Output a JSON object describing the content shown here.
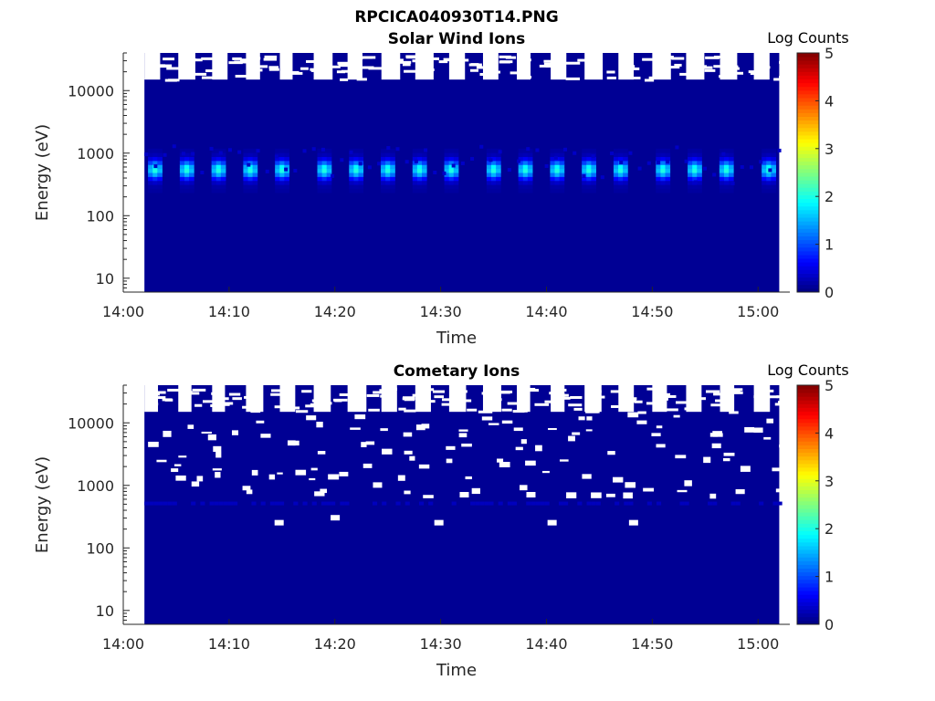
{
  "figure": {
    "title": "RPCICA040930T14.PNG"
  },
  "chart_data": [
    {
      "type": "heatmap",
      "title": "Solar Wind Ions",
      "xlabel": "Time",
      "ylabel": "Energy (eV)",
      "x_ticks": [
        "14:00",
        "14:10",
        "14:20",
        "14:30",
        "14:40",
        "14:50",
        "15:00"
      ],
      "x_range": [
        "14:00",
        "15:03"
      ],
      "data_time_range": [
        "14:02",
        "15:02"
      ],
      "y_scale": "log",
      "y_ticks": [
        "10",
        "100",
        "1000",
        "10000"
      ],
      "y_range": [
        6,
        40000
      ],
      "colorbar": {
        "label": "Log Counts",
        "ticks": [
          "0",
          "1",
          "2",
          "3",
          "4",
          "5"
        ],
        "range": [
          0,
          5
        ],
        "colormap": "jet"
      },
      "background_log_counts": 0.1,
      "peak_energy_eV": 550,
      "peak_log_counts": 1.9,
      "peak_band_eV": [
        250,
        1100
      ],
      "sweep_period_min": 3.2,
      "peak_times": [
        "14:03",
        "14:06",
        "14:09",
        "14:12",
        "14:15",
        "14:19",
        "14:22",
        "14:25",
        "14:28",
        "14:31",
        "14:35",
        "14:38",
        "14:41",
        "14:44",
        "14:47",
        "14:51",
        "14:54",
        "14:57",
        "15:01"
      ],
      "no_data_regions": "white gaps above ~15000 eV at the start of each energy sweep"
    },
    {
      "type": "heatmap",
      "title": "Cometary Ions",
      "xlabel": "Time",
      "ylabel": "Energy (eV)",
      "x_ticks": [
        "14:00",
        "14:10",
        "14:20",
        "14:30",
        "14:40",
        "14:50",
        "15:00"
      ],
      "x_range": [
        "14:00",
        "15:03"
      ],
      "data_time_range": [
        "14:02",
        "15:02"
      ],
      "y_scale": "log",
      "y_ticks": [
        "10",
        "100",
        "1000",
        "10000"
      ],
      "y_range": [
        6,
        40000
      ],
      "colorbar": {
        "label": "Log Counts",
        "ticks": [
          "0",
          "1",
          "2",
          "3",
          "4",
          "5"
        ],
        "range": [
          0,
          5
        ],
        "colormap": "jet"
      },
      "background_log_counts": 0.1,
      "peak_energy_eV": 500,
      "peak_log_counts": 0.3,
      "no_data_regions": "scattered white gaps, mostly above ~700 eV"
    }
  ]
}
